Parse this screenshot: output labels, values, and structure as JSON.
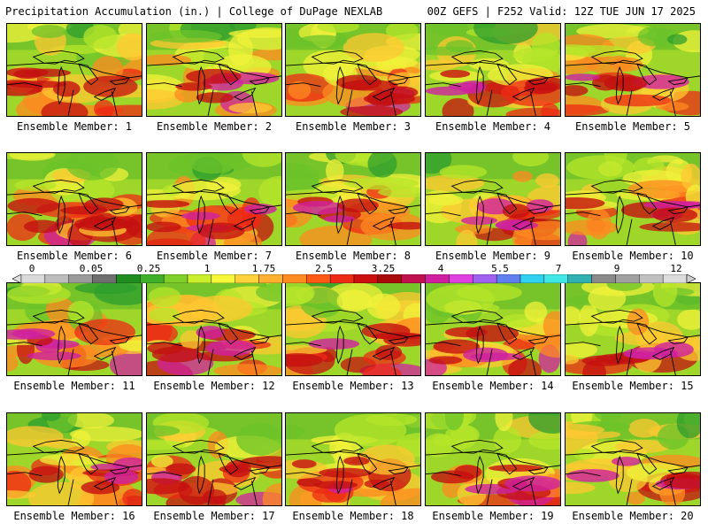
{
  "header": {
    "left": "Precipitation Accumulation (in.) | College of DuPage NEXLAB",
    "right": "00Z GEFS | F252 Valid: 12Z TUE JUN 17 2025"
  },
  "members": [
    {
      "label": "Ensemble Member: 1"
    },
    {
      "label": "Ensemble Member: 2"
    },
    {
      "label": "Ensemble Member: 3"
    },
    {
      "label": "Ensemble Member: 4"
    },
    {
      "label": "Ensemble Member: 5"
    },
    {
      "label": "Ensemble Member: 6"
    },
    {
      "label": "Ensemble Member: 7"
    },
    {
      "label": "Ensemble Member: 8"
    },
    {
      "label": "Ensemble Member: 9"
    },
    {
      "label": "Ensemble Member: 10"
    },
    {
      "label": "Ensemble Member: 11"
    },
    {
      "label": "Ensemble Member: 12"
    },
    {
      "label": "Ensemble Member: 13"
    },
    {
      "label": "Ensemble Member: 14"
    },
    {
      "label": "Ensemble Member: 15"
    },
    {
      "label": "Ensemble Member: 16"
    },
    {
      "label": "Ensemble Member: 17"
    },
    {
      "label": "Ensemble Member: 18"
    },
    {
      "label": "Ensemble Member: 19"
    },
    {
      "label": "Ensemble Member: 20"
    }
  ],
  "colorbar": {
    "labels": [
      "0",
      "0.05",
      "0.25",
      "1",
      "1.75",
      "2.5",
      "3.25",
      "4",
      "5.5",
      "7",
      "9",
      "12"
    ],
    "colors": [
      "#d9d9d9",
      "#bdbdbd",
      "#9a9a9a",
      "#6f6f6f",
      "#1e8c1e",
      "#3fae28",
      "#7fcf2a",
      "#c8ef2a",
      "#f7f73a",
      "#ffd23a",
      "#ffb030",
      "#ff8a20",
      "#ff5a14",
      "#ee2a14",
      "#cc1010",
      "#aa0a0a",
      "#c01050",
      "#d020a0",
      "#e040e0",
      "#a060f0",
      "#6080f0",
      "#30d0f0",
      "#40e8e8",
      "#30b0b0",
      "#8a8a8a",
      "#a0a0a0",
      "#c0c0c0",
      "#dcdcdc"
    ]
  }
}
